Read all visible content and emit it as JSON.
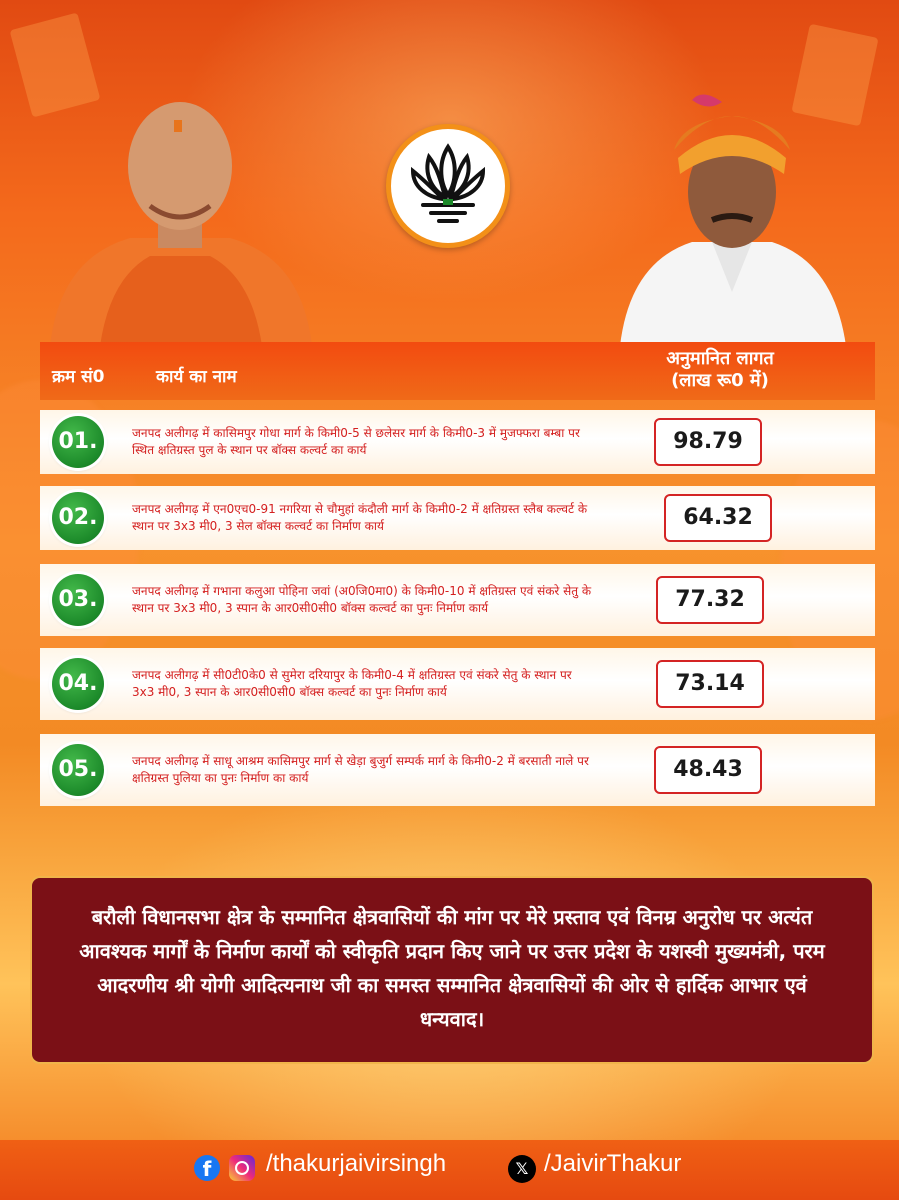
{
  "table": {
    "header": {
      "serial": "क्रम सं0",
      "work_name": "कार्य का नाम",
      "cost_line1": "अनुमानित लागत",
      "cost_line2": "(लाख रू0 में)"
    },
    "rows": [
      {
        "num": "01.",
        "text": "जनपद अलीगढ़ में कासिमपुर गोधा मार्ग के किमी0-5 से छलेसर मार्ग के किमी0-3 में मुजफ्फरा बम्बा पर स्थित क्षतिग्रस्त पुल के स्थान पर बॉक्स कल्वर्ट का कार्य",
        "cost": "98.79"
      },
      {
        "num": "02.",
        "text": "जनपद अलीगढ़ में एन0एच0-91 नगरिया से चौमुहां कंदौली मार्ग के किमी0-2 में क्षतिग्रस्त स्लैब कल्वर्ट के स्थान पर 3x3 मी0, 3 सेल बॉक्स कल्वर्ट का निर्माण कार्य",
        "cost": "64.32"
      },
      {
        "num": "03.",
        "text": "जनपद अलीगढ़ में गभाना कलुआ पोहिना जवां (अ0जि0मा0) के किमी0-10 में क्षतिग्रस्त एवं संकरे सेतु के स्थान पर 3x3 मी0, 3 स्पान के आर0सी0सी0 बॉक्स कल्वर्ट का पुनः निर्माण कार्य",
        "cost": "77.32"
      },
      {
        "num": "04.",
        "text": "जनपद अलीगढ़ में सी0टी0के0 से सुमेरा दरियापुर के किमी0-4 में क्षतिग्रस्त एवं संकरे सेतु के स्थान पर 3x3 मी0, 3 स्पान के आर0सी0सी0 बॉक्स कल्वर्ट का पुनः निर्माण कार्य",
        "cost": "73.14"
      },
      {
        "num": "05.",
        "text": "जनपद अलीगढ़ में साधू आश्रम कासिमपुर मार्ग से खेड़ा बुजुर्ग सम्पर्क मार्ग के किमी0-2 में बरसाती नाले पर क्षतिग्रस्त पुलिया का पुनः निर्माण का कार्य",
        "cost": "48.43"
      }
    ]
  },
  "message": "बरौली विधानसभा क्षेत्र के सम्मानित क्षेत्रवासियों की मांग पर मेरे प्रस्ताव एवं विनम्र अनुरोध पर अत्यंत आवश्यक मार्गों के निर्माण कार्यों को स्वीकृति प्रदान किए जाने पर उत्तर प्रदेश के यशस्वी मुख्यमंत्री, परम आदरणीय श्री योगी आदित्यनाथ जी का समस्त सम्मानित क्षेत्रवासियों की ओर से हार्दिक आभार एवं धन्यवाद।",
  "footer": {
    "fb_ig_handle": "/thakurjaivirsingh",
    "x_handle": "/JaivirThakur",
    "icons": [
      "facebook-icon",
      "instagram-icon",
      "x-icon"
    ]
  },
  "colors": {
    "accent_orange": "#f24b10",
    "number_green": "#1c8a2a",
    "row_text_red": "#d42020",
    "message_bg": "#7b1016"
  }
}
